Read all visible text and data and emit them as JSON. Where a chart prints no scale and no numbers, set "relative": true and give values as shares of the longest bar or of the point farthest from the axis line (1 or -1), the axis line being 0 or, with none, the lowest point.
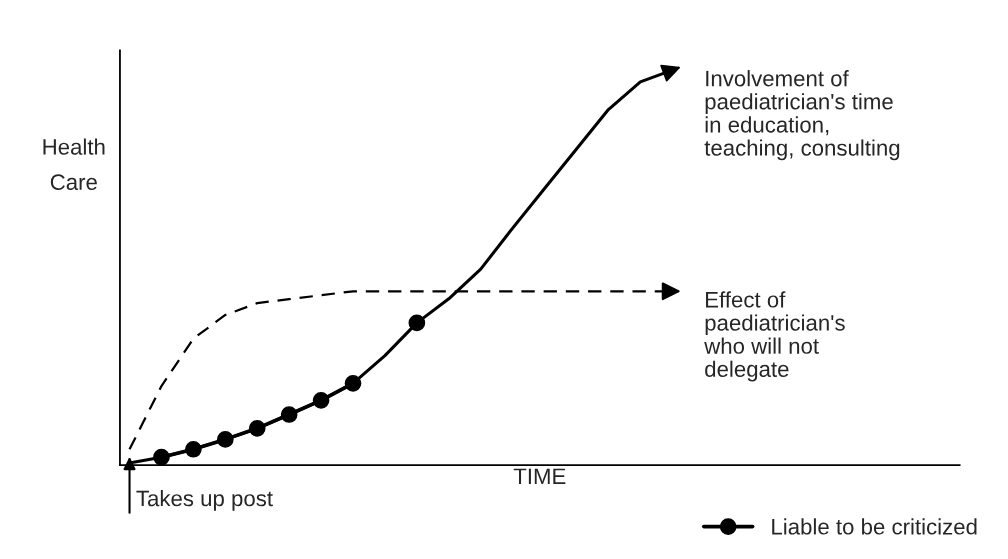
{
  "chart_data": {
    "type": "line",
    "relative": true,
    "xlabel": "TIME",
    "ylabel": "Health\nCare",
    "categories": [
      null,
      null,
      null,
      null,
      null,
      null,
      null,
      null,
      null,
      null,
      null,
      null,
      null,
      null,
      null,
      null,
      null,
      null,
      null,
      null,
      null,
      null,
      null,
      null,
      null,
      null,
      null
    ],
    "series": [
      {
        "color": "#000000",
        "line_style": "solid",
        "marker": "none",
        "values": [
          0.005,
          0.02,
          0.04,
          0.065,
          0.093,
          0.128,
          0.164,
          0.207,
          0.277,
          0.36,
          0.421,
          0.496,
          0.6,
          0.7,
          0.8,
          0.9,
          0.97,
          1.0,
          null,
          null,
          null,
          null,
          null,
          null,
          null,
          null,
          null
        ]
      },
      {
        "color": "#000000",
        "line_style": "dashed",
        "marker": "none",
        "values": [
          0.04,
          0.2,
          0.32,
          0.38,
          0.41,
          0.42,
          0.43,
          0.44,
          0.44,
          0.44,
          0.44,
          0.44,
          0.44,
          0.44,
          0.44,
          0.44,
          0.44,
          0.44,
          null,
          null,
          null,
          null,
          null,
          null,
          null,
          null,
          null
        ]
      },
      {
        "name": "Liable to be criticized",
        "color": "#000000",
        "line_style": "solid",
        "marker": "circle",
        "values": [
          null,
          0.02,
          0.04,
          0.065,
          0.093,
          0.128,
          0.164,
          0.207,
          null,
          0.36,
          null,
          null,
          null,
          null,
          null,
          null,
          null,
          null,
          null,
          null,
          null,
          null,
          null,
          null,
          null,
          null,
          null
        ]
      }
    ],
    "annotations": [
      "Involvement of\npaediatrician's time\nin education,\nteaching, consulting",
      "Effect of\npaediatrician's\nwho will not\ndelegate",
      "Takes up post"
    ],
    "legend": "bottom right",
    "tick_labels": false
  }
}
